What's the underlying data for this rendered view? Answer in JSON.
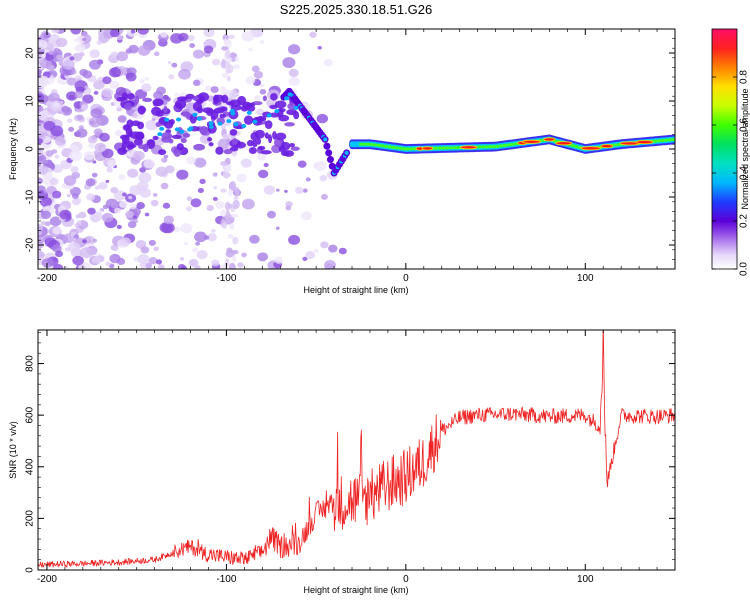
{
  "title": "S225.2025.330.18.51.G26",
  "chart_data": [
    {
      "type": "heatmap",
      "xlabel": "Height of straight line (km)",
      "ylabel": "Frequency (Hz)",
      "xlim": [
        -205,
        150
      ],
      "ylim": [
        -25,
        25
      ],
      "xticks": [
        -200,
        -100,
        0,
        100
      ],
      "yticks": [
        -20,
        -10,
        0,
        10,
        20
      ],
      "colorbar": {
        "label": "Normalized spectral amplitude",
        "range": [
          0,
          1
        ],
        "ticks": [
          0.0,
          0.2,
          0.4,
          0.6,
          0.8
        ],
        "tick_labels": [
          "0.0",
          "0.2",
          "0.4",
          "0.6",
          "0.8"
        ]
      },
      "ridge": {
        "description_points_x": [
          -140,
          -110,
          -80,
          -65,
          -55,
          -45,
          -40,
          -30,
          -20,
          0,
          50,
          80,
          100,
          120,
          150
        ],
        "frequency_hz": [
          5,
          6,
          6,
          12,
          7,
          2,
          -5,
          1,
          1,
          0,
          0.5,
          2,
          0,
          1,
          2
        ]
      }
    },
    {
      "type": "line",
      "xlabel": "Height of straight line (km)",
      "ylabel": "SNR (10 * v/v)",
      "xlim": [
        -205,
        150
      ],
      "ylim": [
        0,
        930
      ],
      "xticks": [
        -200,
        -100,
        0,
        100
      ],
      "yticks": [
        0,
        200,
        400,
        600,
        800
      ],
      "series": [
        {
          "name": "SNR",
          "color": "#ee2222",
          "x": [
            -205,
            -180,
            -160,
            -140,
            -125,
            -120,
            -110,
            -100,
            -90,
            -80,
            -75,
            -70,
            -60,
            -50,
            -40,
            -30,
            -20,
            -10,
            0,
            10,
            20,
            30,
            40,
            60,
            80,
            100,
            108,
            110,
            112,
            120,
            140,
            150
          ],
          "values": [
            20,
            25,
            30,
            40,
            80,
            90,
            60,
            50,
            40,
            70,
            130,
            90,
            100,
            220,
            260,
            270,
            280,
            330,
            360,
            420,
            540,
            590,
            600,
            605,
            595,
            600,
            560,
            900,
            330,
            600,
            595,
            600
          ]
        }
      ]
    }
  ]
}
